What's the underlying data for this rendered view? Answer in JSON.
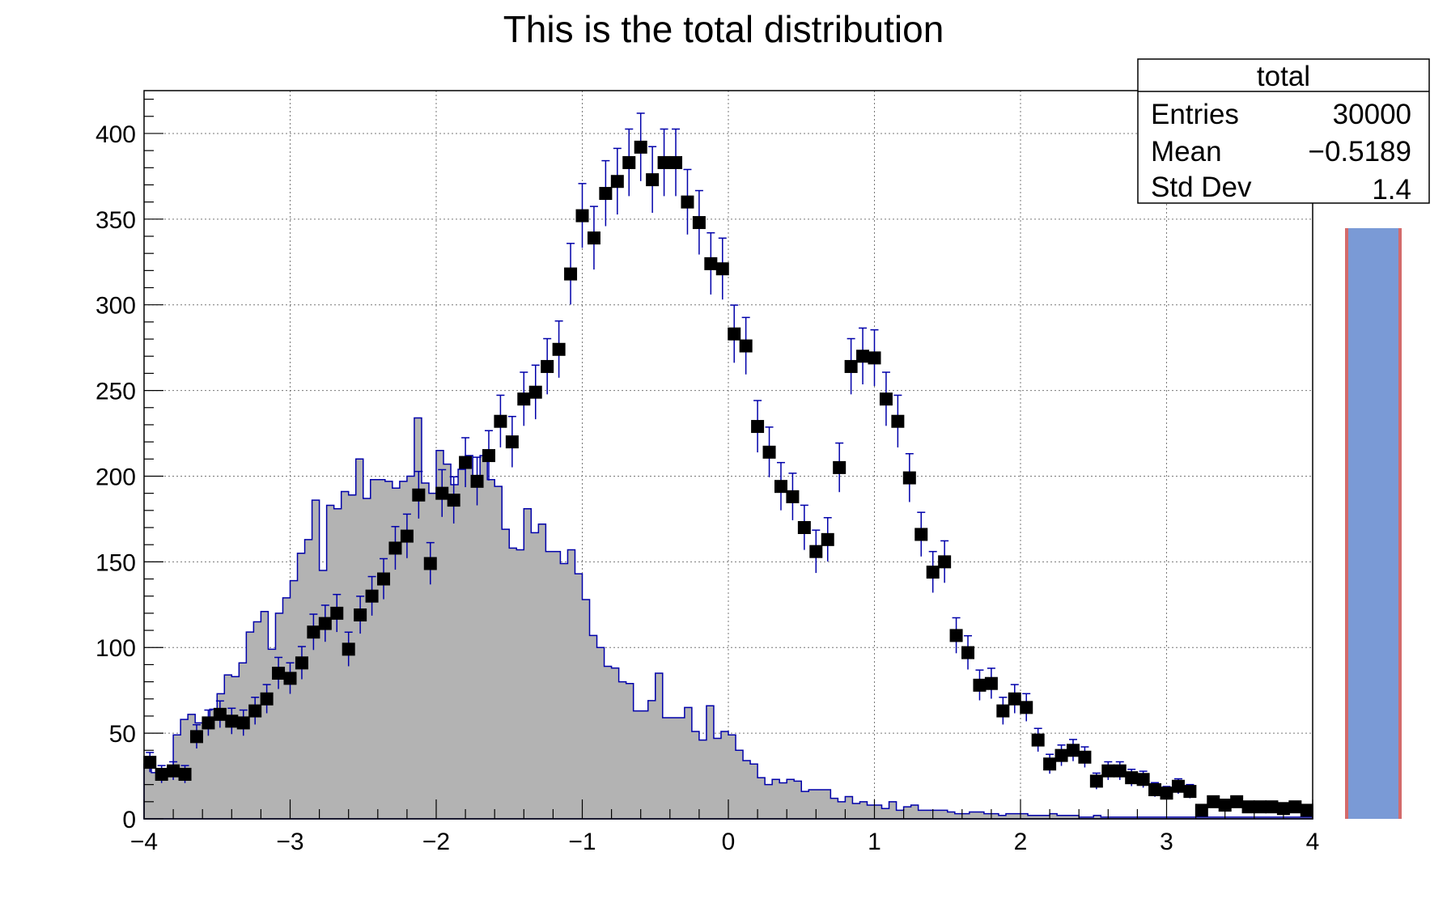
{
  "chart_data": {
    "type": "bar",
    "title": "This is the total distribution",
    "xlabel": "",
    "ylabel": "",
    "xlim": [
      -4,
      4
    ],
    "ylim": [
      0,
      425
    ],
    "grid": true,
    "x_ticks": [
      "−4",
      "−3",
      "−2",
      "−1",
      "0",
      "1",
      "2",
      "3",
      "4"
    ],
    "y_ticks": [
      "0",
      "50",
      "100",
      "150",
      "200",
      "250",
      "300",
      "350",
      "400"
    ],
    "bin_edges_start": -4,
    "bin_width": 0.1,
    "series": [
      {
        "style": "filled-histogram",
        "values": [
          32,
          27,
          28,
          26,
          49,
          58,
          61,
          56,
          56,
          64,
          73,
          84,
          83,
          91,
          109,
          115,
          121,
          99,
          120,
          129,
          139,
          155,
          163,
          186,
          145,
          183,
          181,
          191,
          189,
          210,
          187,
          198,
          198,
          197,
          193,
          197,
          200,
          234,
          196,
          190,
          215,
          207,
          195,
          204,
          212,
          199,
          212,
          198,
          194,
          169,
          158,
          157,
          181,
          167,
          172,
          156,
          156,
          149,
          157,
          143,
          128,
          107,
          100,
          89,
          88,
          80,
          79,
          63,
          63,
          69,
          85,
          59,
          59,
          59,
          65,
          51,
          46,
          66,
          47,
          51,
          49,
          40,
          34,
          32,
          24,
          20,
          23,
          21,
          23,
          22,
          16,
          17,
          17,
          17,
          12,
          10,
          13,
          9,
          10,
          8,
          8,
          6,
          10,
          5,
          7,
          8,
          5,
          5,
          5,
          5,
          4,
          3,
          3,
          4,
          4,
          3,
          3,
          2,
          3,
          3,
          3,
          2,
          2,
          2,
          3,
          2,
          2,
          2,
          1,
          1,
          2,
          1,
          1,
          1,
          1,
          1,
          1,
          1,
          1,
          1,
          1,
          1,
          1,
          1,
          1,
          1,
          1,
          1,
          1,
          1,
          1,
          1,
          1,
          1,
          1,
          1,
          1,
          1,
          1,
          1
        ]
      },
      {
        "style": "error-cross",
        "values": [
          0,
          0,
          0,
          0,
          0,
          0,
          0,
          0,
          0,
          0,
          0,
          0,
          0,
          0,
          0,
          0,
          0,
          0,
          0,
          0,
          0,
          0,
          0,
          0,
          0,
          0,
          0,
          0,
          0,
          0,
          0,
          0,
          0,
          0,
          0,
          0,
          0,
          0,
          0,
          0,
          0,
          0,
          0,
          0,
          0,
          0,
          0,
          0,
          0,
          0,
          0,
          0,
          0,
          0,
          0,
          0,
          0,
          0,
          0,
          0,
          0,
          0,
          0,
          0,
          0,
          0,
          0,
          0,
          0,
          0,
          0,
          0,
          0,
          0,
          0,
          0,
          0,
          0,
          0,
          0,
          0,
          0,
          0,
          0,
          0,
          0,
          0,
          0,
          0,
          0,
          0,
          0,
          0,
          0,
          0,
          0,
          0,
          0,
          0,
          0,
          0,
          0,
          0,
          0,
          0,
          0,
          0,
          0,
          0,
          0,
          0,
          0,
          0,
          0,
          0,
          0,
          0,
          0,
          0,
          0,
          0,
          0,
          0,
          0,
          0,
          0,
          0,
          0,
          0,
          0,
          0,
          0,
          0,
          0,
          0,
          0,
          0,
          0,
          0,
          0,
          0,
          0,
          0,
          0,
          0,
          0,
          0,
          0,
          0,
          0,
          0,
          0,
          0,
          0,
          0,
          0,
          0,
          0,
          0,
          0
        ]
      },
      {
        "style": "marker-square",
        "values": [
          33,
          26,
          28,
          26,
          48,
          56,
          61,
          57,
          56,
          63,
          70,
          85,
          82,
          91,
          109,
          114,
          120,
          99,
          119,
          130,
          140,
          158,
          165,
          189,
          149,
          190,
          186,
          208,
          197,
          212,
          232,
          220,
          245,
          249,
          264,
          274,
          318,
          352,
          339,
          365,
          372,
          383,
          392,
          373,
          383,
          383,
          360,
          348,
          324,
          321,
          283,
          276,
          229,
          214,
          194,
          188,
          170,
          156,
          163,
          205,
          264,
          270,
          269,
          245,
          232,
          199,
          166,
          144,
          150,
          107,
          97,
          78,
          79,
          63,
          70,
          65,
          46,
          32,
          37,
          40,
          36,
          22,
          28,
          28,
          24,
          23,
          17,
          15,
          19,
          16,
          5,
          10,
          8,
          10,
          7,
          7,
          7,
          6,
          7,
          5
        ]
      }
    ],
    "stats_box": {
      "title": "total",
      "rows": [
        {
          "label": "Entries",
          "value": "30000"
        },
        {
          "label": "Mean",
          "value": "−0.5189"
        },
        {
          "label": "Std Dev",
          "value": "1.4"
        }
      ]
    },
    "colors": {
      "fill": "#b3b3b3",
      "line": "#0000aa",
      "marker": "#000000",
      "side_bar": "#7a9ad6",
      "side_bar_edge": "#d46a6a"
    }
  }
}
